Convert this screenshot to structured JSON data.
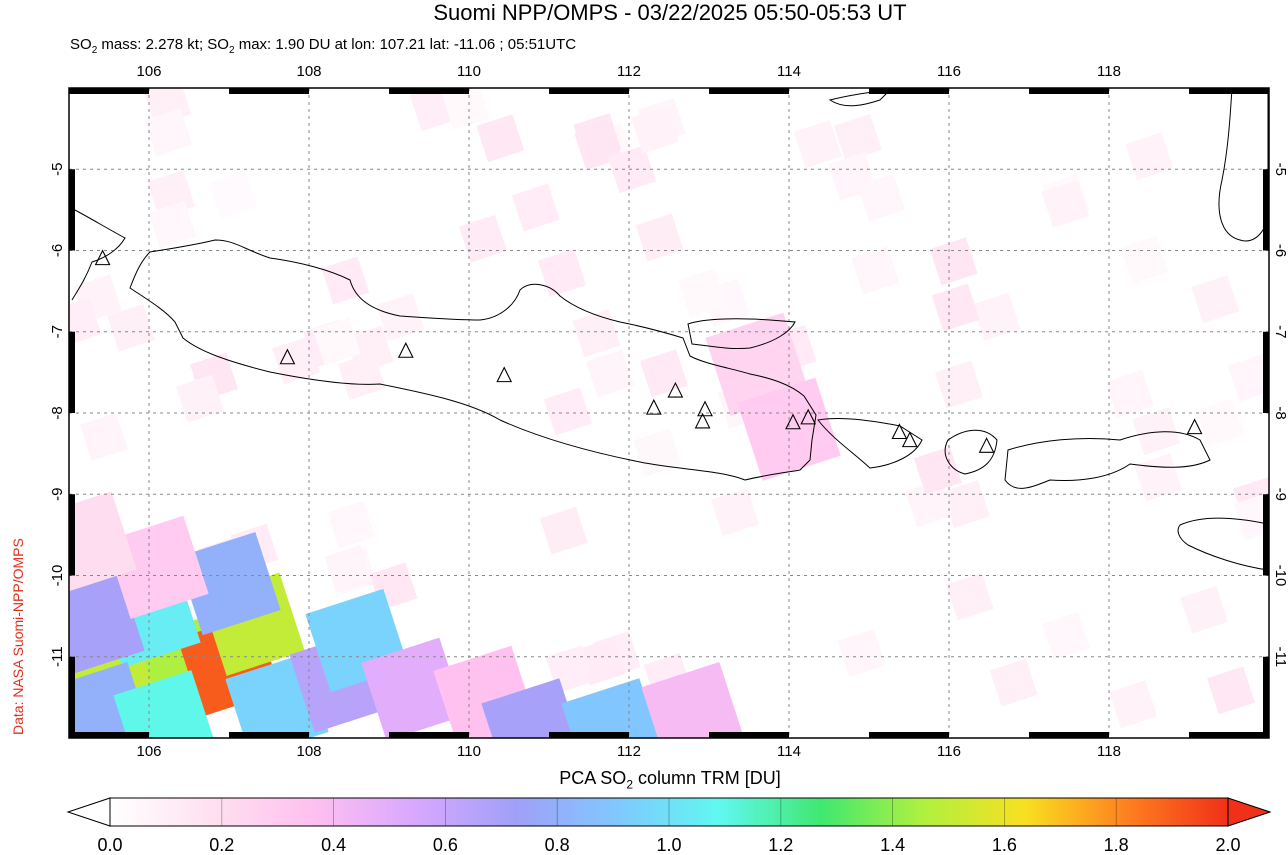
{
  "title": "Suomi NPP/OMPS - 03/22/2025 05:50-05:53 UT",
  "subtitle": {
    "mass_prefix": "SO",
    "mass_sub": "2",
    "mass_text": " mass: 2.278 kt; SO",
    "max_sub": "2",
    "max_text": " max: 1.90 DU at lon: 107.21 lat: -11.06 ; 05:51UTC"
  },
  "credit": "Data: NASA Suomi-NPP/OMPS",
  "map": {
    "lon_ticks": [
      "106",
      "108",
      "110",
      "112",
      "114",
      "116",
      "118"
    ],
    "lat_ticks": [
      "-5",
      "-6",
      "-7",
      "-8",
      "-9",
      "-10",
      "-11"
    ],
    "lon_values": [
      106,
      108,
      110,
      112,
      114,
      116,
      118
    ],
    "lat_values": [
      -5,
      -6,
      -7,
      -8,
      -9,
      -10,
      -11
    ],
    "lon_range": [
      105,
      120
    ],
    "lat_range": [
      -4,
      -12
    ],
    "volcanoes": [
      [
        105.42,
        -6.1
      ],
      [
        107.73,
        -7.32
      ],
      [
        109.21,
        -7.24
      ],
      [
        110.44,
        -7.54
      ],
      [
        112.31,
        -7.94
      ],
      [
        112.58,
        -7.73
      ],
      [
        112.95,
        -7.96
      ],
      [
        112.92,
        -8.11
      ],
      [
        114.05,
        -8.12
      ],
      [
        114.24,
        -8.06
      ],
      [
        115.38,
        -8.24
      ],
      [
        115.51,
        -8.34
      ],
      [
        116.47,
        -8.41
      ],
      [
        119.07,
        -8.18
      ]
    ],
    "so2_cells": [
      {
        "c": [
          105.5,
          -11.3
        ],
        "v": 1.5
      },
      {
        "c": [
          106.5,
          -11.1
        ],
        "v": 1.45
      },
      {
        "c": [
          107.0,
          -11.1
        ],
        "v": 1.9
      },
      {
        "c": [
          107.3,
          -10.6
        ],
        "v": 1.5
      },
      {
        "c": [
          106.0,
          -10.5
        ],
        "v": 1.05
      },
      {
        "c": [
          107.0,
          -10.1
        ],
        "v": 0.8
      },
      {
        "c": [
          105.3,
          -10.6
        ],
        "v": 0.7
      },
      {
        "c": [
          105.4,
          -11.7
        ],
        "v": 0.8
      },
      {
        "c": [
          106.2,
          -11.8
        ],
        "v": 1.1
      },
      {
        "c": [
          107.6,
          -11.6
        ],
        "v": 0.95
      },
      {
        "c": [
          108.4,
          -11.3
        ],
        "v": 0.65
      },
      {
        "c": [
          108.6,
          -10.8
        ],
        "v": 0.95
      },
      {
        "c": [
          109.3,
          -11.4
        ],
        "v": 0.5
      },
      {
        "c": [
          110.2,
          -11.5
        ],
        "v": 0.35
      },
      {
        "c": [
          110.8,
          -11.9
        ],
        "v": 0.7
      },
      {
        "c": [
          111.8,
          -11.9
        ],
        "v": 0.9
      },
      {
        "c": [
          112.8,
          -11.7
        ],
        "v": 0.4
      },
      {
        "c": [
          106.1,
          -9.9
        ],
        "v": 0.3
      },
      {
        "c": [
          105.2,
          -9.6
        ],
        "v": 0.2
      },
      {
        "c": [
          113.6,
          -7.4
        ],
        "v": 0.25
      },
      {
        "c": [
          114.0,
          -8.2
        ],
        "v": 0.3
      }
    ]
  },
  "colorbar": {
    "title_prefix": "PCA SO",
    "title_sub": "2",
    "title_suffix": " column TRM [DU]",
    "ticks": [
      "0.0",
      "0.2",
      "0.4",
      "0.6",
      "0.8",
      "1.0",
      "1.2",
      "1.4",
      "1.6",
      "1.8",
      "2.0"
    ],
    "colors": [
      "#ffffff",
      "#ffe0f0",
      "#ffc0f0",
      "#d8a8ff",
      "#a0a0f8",
      "#80c8ff",
      "#60f8f0",
      "#40e870",
      "#b0f040",
      "#f8e020",
      "#ff8020",
      "#f03018"
    ]
  }
}
